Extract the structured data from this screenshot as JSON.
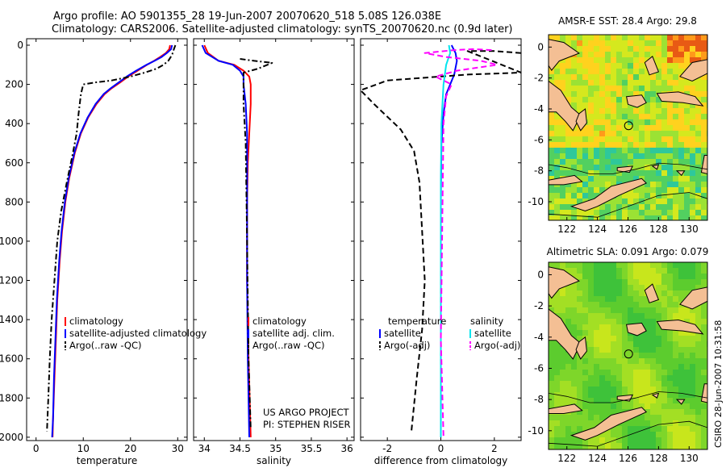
{
  "title_line1": "Argo profile: AO 5901355_28 19-Jun-2007 20070620_518 5.08S 126.038E",
  "title_line2": "Climatology: CARS2006. Satellite-adjusted climatology: synTS_20070620.nc (0.9d later)",
  "side_label": "CSIRO 28-Jun-2007 10:31:58",
  "colors": {
    "climatology": "#ff0000",
    "satellite": "#0000ff",
    "argo": "#000000",
    "sal_satellite": "#00e5ee",
    "sal_argo": "#ff00ff"
  },
  "chart_data": [
    {
      "type": "line",
      "xlabel": "temperature",
      "ylabel": "",
      "xlim": [
        -2,
        32
      ],
      "ylim": [
        2050,
        0
      ],
      "xticks": [
        0,
        10,
        20,
        30
      ],
      "xtick_labels": [
        "0",
        "10",
        "20",
        "30"
      ],
      "yticks": [
        0,
        200,
        400,
        600,
        800,
        1000,
        1200,
        1400,
        1600,
        1800,
        2000
      ],
      "ytick_labels": [
        "0",
        "200",
        "400",
        "600",
        "800",
        "1000",
        "1200",
        "1400",
        "1600",
        "1800",
        "2000"
      ],
      "legend": [
        "climatology",
        "satellite-adjusted climatology",
        "Argo(..raw -QC)"
      ],
      "series": [
        {
          "name": "climatology",
          "style": "solid",
          "color": "#ff0000",
          "points": [
            [
              28.4,
              0
            ],
            [
              28.2,
              20
            ],
            [
              27.5,
              40
            ],
            [
              26.3,
              60
            ],
            [
              25,
              80
            ],
            [
              23.5,
              100
            ],
            [
              21.5,
              130
            ],
            [
              19.5,
              160
            ],
            [
              17.8,
              190
            ],
            [
              16,
              220
            ],
            [
              14.5,
              250
            ],
            [
              12.8,
              300
            ],
            [
              11,
              370
            ],
            [
              9.5,
              450
            ],
            [
              8.2,
              550
            ],
            [
              7,
              680
            ],
            [
              6.2,
              800
            ],
            [
              5.5,
              950
            ],
            [
              5,
              1100
            ],
            [
              4.5,
              1300
            ],
            [
              4.2,
              1500
            ],
            [
              3.9,
              1700
            ],
            [
              3.6,
              1900
            ],
            [
              3.5,
              2000
            ]
          ]
        },
        {
          "name": "satellite-adjusted climatology",
          "style": "solid",
          "color": "#0000ff",
          "points": [
            [
              28.8,
              0
            ],
            [
              28.6,
              20
            ],
            [
              27.7,
              40
            ],
            [
              26.6,
              60
            ],
            [
              25.1,
              80
            ],
            [
              23.4,
              100
            ],
            [
              21.2,
              130
            ],
            [
              19.2,
              160
            ],
            [
              17.5,
              190
            ],
            [
              15.8,
              220
            ],
            [
              14.3,
              250
            ],
            [
              12.6,
              300
            ],
            [
              10.9,
              370
            ],
            [
              9.4,
              450
            ],
            [
              8.1,
              550
            ],
            [
              6.9,
              680
            ],
            [
              6.1,
              800
            ],
            [
              5.4,
              950
            ],
            [
              4.9,
              1100
            ],
            [
              4.4,
              1300
            ],
            [
              4.1,
              1500
            ],
            [
              3.8,
              1700
            ],
            [
              3.6,
              1900
            ],
            [
              3.4,
              2000
            ]
          ]
        },
        {
          "name": "Argo(..raw -QC)",
          "style": "dashdot",
          "color": "#000000",
          "points": [
            [
              29.5,
              0
            ],
            [
              29.2,
              20
            ],
            [
              28.8,
              50
            ],
            [
              28,
              80
            ],
            [
              27,
              100
            ],
            [
              25.5,
              120
            ],
            [
              23,
              140
            ],
            [
              20,
              160
            ],
            [
              16,
              180
            ],
            [
              12.5,
              190
            ],
            [
              10,
              200
            ],
            [
              9.5,
              250
            ],
            [
              9,
              350
            ],
            [
              8.6,
              450
            ],
            [
              7.8,
              550
            ],
            [
              6.5,
              700
            ],
            [
              5.3,
              850
            ],
            [
              4.5,
              1000
            ],
            [
              3.9,
              1200
            ],
            [
              3.3,
              1400
            ],
            [
              2.9,
              1600
            ],
            [
              2.6,
              1800
            ],
            [
              2.3,
              1970
            ]
          ]
        }
      ]
    },
    {
      "type": "line",
      "xlabel": "salinity",
      "ylabel": "",
      "xlim": [
        33.85,
        36.1
      ],
      "ylim": [
        2050,
        0
      ],
      "xticks": [
        34,
        34.5,
        35,
        35.5,
        36
      ],
      "xtick_labels": [
        "34",
        "34.5",
        "35",
        "35.5",
        "36"
      ],
      "legend": [
        "climatology",
        "satellite adj. clim.",
        "Argo(..raw -QC)"
      ],
      "annotations": [
        "US ARGO PROJECT",
        "PI: STEPHEN RISER"
      ],
      "series": [
        {
          "name": "climatology",
          "style": "solid",
          "color": "#ff0000",
          "points": [
            [
              34,
              0
            ],
            [
              34.05,
              40
            ],
            [
              34.2,
              80
            ],
            [
              34.42,
              100
            ],
            [
              34.55,
              130
            ],
            [
              34.63,
              160
            ],
            [
              34.65,
              200
            ],
            [
              34.65,
              300
            ],
            [
              34.63,
              450
            ],
            [
              34.61,
              600
            ],
            [
              34.6,
              800
            ],
            [
              34.6,
              1200
            ],
            [
              34.62,
              1600
            ],
            [
              34.65,
              2000
            ]
          ]
        },
        {
          "name": "satellite adj. clim.",
          "style": "solid",
          "color": "#0000ff",
          "points": [
            [
              33.97,
              0
            ],
            [
              34.02,
              40
            ],
            [
              34.2,
              80
            ],
            [
              34.4,
              100
            ],
            [
              34.5,
              130
            ],
            [
              34.55,
              160
            ],
            [
              34.55,
              200
            ],
            [
              34.58,
              300
            ],
            [
              34.6,
              450
            ],
            [
              34.6,
              600
            ],
            [
              34.6,
              800
            ],
            [
              34.6,
              1200
            ],
            [
              34.61,
              1600
            ],
            [
              34.63,
              2000
            ]
          ]
        },
        {
          "name": "Argo(..raw -QC)",
          "style": "dashdot",
          "color": "#000000",
          "points": [
            [
              34.5,
              70
            ],
            [
              34.7,
              80
            ],
            [
              34.95,
              90
            ],
            [
              34.75,
              120
            ],
            [
              34.55,
              140
            ],
            [
              34.55,
              300
            ],
            [
              34.58,
              500
            ],
            [
              34.6,
              1000
            ],
            [
              34.62,
              1600
            ],
            [
              34.65,
              1960
            ]
          ]
        }
      ]
    },
    {
      "type": "line",
      "xlabel": "difference from climatology",
      "ylabel": "",
      "xlim": [
        -3,
        3
      ],
      "ylim": [
        2050,
        0
      ],
      "xticks": [
        -2,
        0,
        2
      ],
      "xtick_labels": [
        "-2",
        "0",
        "2"
      ],
      "legend_groups": [
        {
          "title": "temperature",
          "items": [
            "satellite",
            "Argo(-adj)"
          ]
        },
        {
          "title": "salinity",
          "items": [
            "satellite",
            "Argo(-adj)"
          ]
        }
      ],
      "series": [
        {
          "name": "temperature satellite",
          "style": "solid",
          "color": "#0000ff",
          "points": [
            [
              0.4,
              0
            ],
            [
              0.55,
              40
            ],
            [
              0.6,
              80
            ],
            [
              0.5,
              150
            ],
            [
              0.2,
              250
            ],
            [
              0.1,
              350
            ],
            [
              0.02,
              500
            ],
            [
              0,
              800
            ],
            [
              0,
              2000
            ]
          ]
        },
        {
          "name": "temperature Argo(-adj)",
          "style": "dashed",
          "color": "#000000",
          "points": [
            [
              3,
              40
            ],
            [
              2,
              30
            ],
            [
              1,
              30
            ],
            [
              3,
              140
            ],
            [
              1,
              150
            ],
            [
              -2,
              180
            ],
            [
              -3,
              230
            ],
            [
              -2.5,
              300
            ],
            [
              -1.5,
              430
            ],
            [
              -1,
              540
            ],
            [
              -0.8,
              700
            ],
            [
              -0.7,
              950
            ],
            [
              -0.6,
              1200
            ],
            [
              -0.7,
              1450
            ],
            [
              -0.9,
              1700
            ],
            [
              -1.1,
              1970
            ]
          ]
        },
        {
          "name": "salinity satellite",
          "style": "solid",
          "color": "#00e5ee",
          "points": [
            [
              0.3,
              0
            ],
            [
              0.35,
              40
            ],
            [
              0.2,
              100
            ],
            [
              0.1,
              200
            ],
            [
              0.02,
              400
            ],
            [
              0,
              700
            ],
            [
              0,
              2000
            ]
          ]
        },
        {
          "name": "salinity Argo(-adj)",
          "style": "dashed",
          "color": "#ff00ff",
          "points": [
            [
              1.9,
              25
            ],
            [
              1.2,
              20
            ],
            [
              0.5,
              25
            ],
            [
              -0.6,
              40
            ],
            [
              0.2,
              60
            ],
            [
              1.5,
              80
            ],
            [
              2.1,
              100
            ],
            [
              0.6,
              130
            ],
            [
              -0.2,
              160
            ],
            [
              0.4,
              200
            ],
            [
              0.2,
              260
            ],
            [
              0.1,
              400
            ],
            [
              0,
              1500
            ],
            [
              0.1,
              2000
            ]
          ]
        }
      ]
    },
    {
      "type": "heatmap",
      "title": "AMSR-E SST: 28.4 Argo: 29.8",
      "xlim": [
        120.8,
        131.2
      ],
      "ylim": [
        -11.2,
        0.8
      ],
      "xticks": [
        122,
        124,
        126,
        128,
        130
      ],
      "yticks": [
        0,
        -2,
        -4,
        -6,
        -8,
        -10
      ],
      "marker": {
        "lon": 126.038,
        "lat": -5.08
      }
    },
    {
      "type": "heatmap",
      "title": "Altimetric SLA: 0.091 Argo: 0.079",
      "xlim": [
        120.8,
        131.2
      ],
      "ylim": [
        -11.2,
        0.8
      ],
      "xticks": [
        122,
        124,
        126,
        128,
        130
      ],
      "yticks": [
        0,
        -2,
        -4,
        -6,
        -8,
        -10
      ],
      "marker": {
        "lon": 126.038,
        "lat": -5.08
      }
    }
  ]
}
